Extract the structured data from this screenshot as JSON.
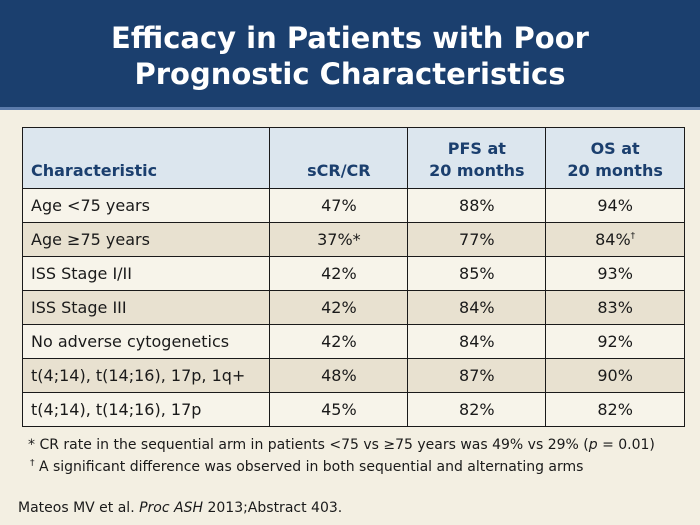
{
  "header": {
    "title_line1": "Efficacy in Patients with Poor",
    "title_line2": "Prognostic Characteristics",
    "background_color": "#1b3f6e"
  },
  "table": {
    "headers": [
      {
        "line1": "",
        "line2": "Characteristic"
      },
      {
        "line1": "",
        "line2": "sCR/CR"
      },
      {
        "line1": "PFS at",
        "line2": "20 months"
      },
      {
        "line1": "OS at",
        "line2": "20 months"
      }
    ],
    "rows": [
      {
        "characteristic": "Age <75 years",
        "scr_cr": "47%",
        "pfs": "88%",
        "os": "94%",
        "os_mark": ""
      },
      {
        "characteristic": "Age ≥75 years",
        "scr_cr": "37%*",
        "pfs": "77%",
        "os": "84%",
        "os_mark": "†"
      },
      {
        "characteristic": "ISS Stage I/II",
        "scr_cr": "42%",
        "pfs": "85%",
        "os": "93%",
        "os_mark": ""
      },
      {
        "characteristic": "ISS Stage III",
        "scr_cr": "42%",
        "pfs": "84%",
        "os": "83%",
        "os_mark": ""
      },
      {
        "characteristic": "No adverse cytogenetics",
        "scr_cr": "42%",
        "pfs": "84%",
        "os": "92%",
        "os_mark": ""
      },
      {
        "characteristic": "t(4;14), t(14;16), 17p, 1q+",
        "scr_cr": "48%",
        "pfs": "87%",
        "os": "90%",
        "os_mark": ""
      },
      {
        "characteristic": "t(4;14), t(14;16), 17p",
        "scr_cr": "45%",
        "pfs": "82%",
        "os": "82%",
        "os_mark": ""
      }
    ]
  },
  "footnotes": {
    "fn1_mark": "*",
    "fn1_text_a": " CR rate in the sequential arm in patients <75 vs ≥75 years was 49% vs 29% (",
    "fn1_p": "p",
    "fn1_text_b": " = 0.01)",
    "fn2_mark": "†",
    "fn2_text": " A significant difference was observed in both sequential and alternating arms"
  },
  "citation": {
    "authors": "Mateos MV et al. ",
    "journal": "Proc ASH",
    "details": " 2013;Abstract 403."
  }
}
